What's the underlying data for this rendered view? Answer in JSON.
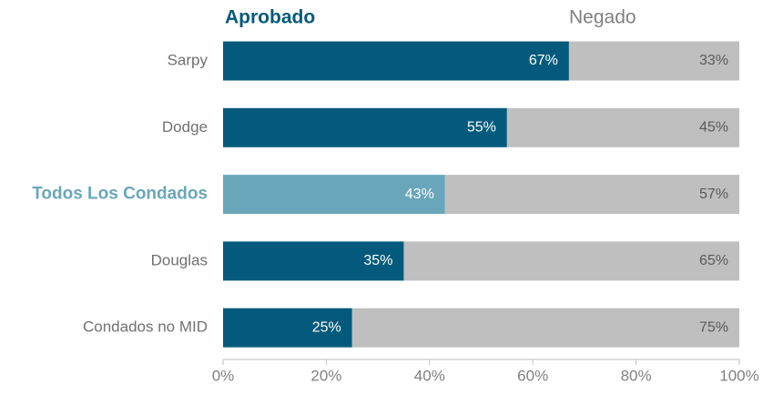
{
  "chart_data": {
    "type": "stacked-bar-horizontal",
    "categories": [
      "Sarpy",
      "Dodge",
      "Todos Los Condados",
      "Douglas",
      "Condados no MID"
    ],
    "series": [
      {
        "name": "Aprobado",
        "color": "#035a7c",
        "colors": [
          "#035a7c",
          "#035a7c",
          "#6aa6ba",
          "#035a7c",
          "#035a7c"
        ],
        "values": [
          67,
          55,
          43,
          35,
          25
        ],
        "value_labels": [
          "67%",
          "55%",
          "43%",
          "35%",
          "25%"
        ]
      },
      {
        "name": "Negado",
        "color": "#bfbfbf",
        "values": [
          33,
          45,
          57,
          65,
          75
        ],
        "value_labels": [
          "33%",
          "45%",
          "57%",
          "65%",
          "75%"
        ]
      }
    ],
    "highlight_color": "#6aa6ba",
    "xlim": [
      0,
      100
    ],
    "xticks": [
      {
        "value": 0,
        "label": "0%"
      },
      {
        "value": 20,
        "label": "20%"
      },
      {
        "value": 40,
        "label": "40%"
      },
      {
        "value": 60,
        "label": "60%"
      },
      {
        "value": 80,
        "label": "80%"
      },
      {
        "value": 100,
        "label": "100%"
      }
    ]
  }
}
